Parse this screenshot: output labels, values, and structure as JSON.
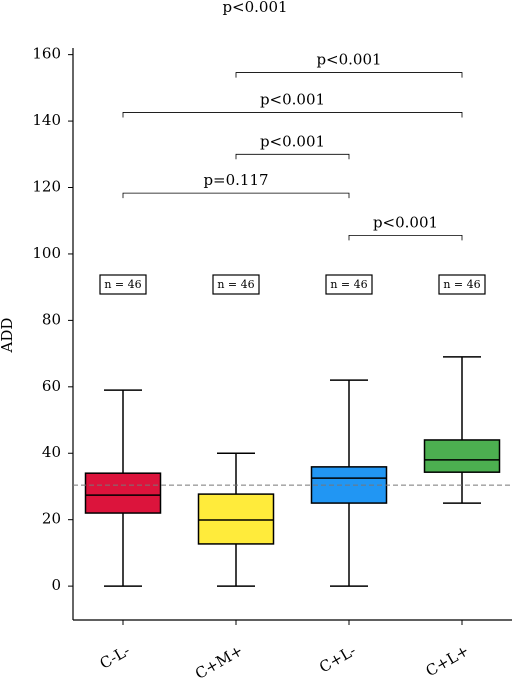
{
  "chart_data": {
    "type": "box",
    "title": "p<0.001",
    "y_label": "ADD",
    "categories": [
      "C-L-",
      "C+M+",
      "C+L-",
      "C+L+"
    ],
    "boxes": [
      {
        "whislo": 0,
        "q1": 22,
        "med": 27.4,
        "q3": 34,
        "whishi": 59,
        "color": "#dc143c"
      },
      {
        "whislo": 0,
        "q1": 12.7,
        "med": 19.9,
        "q3": 27.7,
        "whishi": 40,
        "color": "#ffeb3b"
      },
      {
        "whislo": 0,
        "q1": 25,
        "med": 32.5,
        "q3": 35.9,
        "whishi": 62,
        "color": "#2196f3"
      },
      {
        "whislo": 25,
        "q1": 34.3,
        "med": 38,
        "q3": 44,
        "whishi": 69,
        "color": "#4caf50"
      }
    ],
    "n_labels": [
      "n = 46",
      "n = 46",
      "n = 46",
      "n = 46"
    ],
    "hline": 30.4,
    "brackets": [
      {
        "from": 0,
        "to": 2,
        "y": 118.3,
        "label": "p=0.117"
      },
      {
        "from": 1,
        "to": 2,
        "y": 130,
        "label": "p<0.001"
      },
      {
        "from": 0,
        "to": 3,
        "y": 142.6,
        "label": "p<0.001"
      },
      {
        "from": 1,
        "to": 3,
        "y": 154.6,
        "label": "p<0.001"
      },
      {
        "from": 2,
        "to": 3,
        "y": 105.6,
        "label": "p<0.001"
      }
    ],
    "ylim": [
      -10.2,
      162
    ],
    "yticks": [
      0,
      20,
      40,
      60,
      80,
      100,
      120,
      140,
      160
    ]
  }
}
